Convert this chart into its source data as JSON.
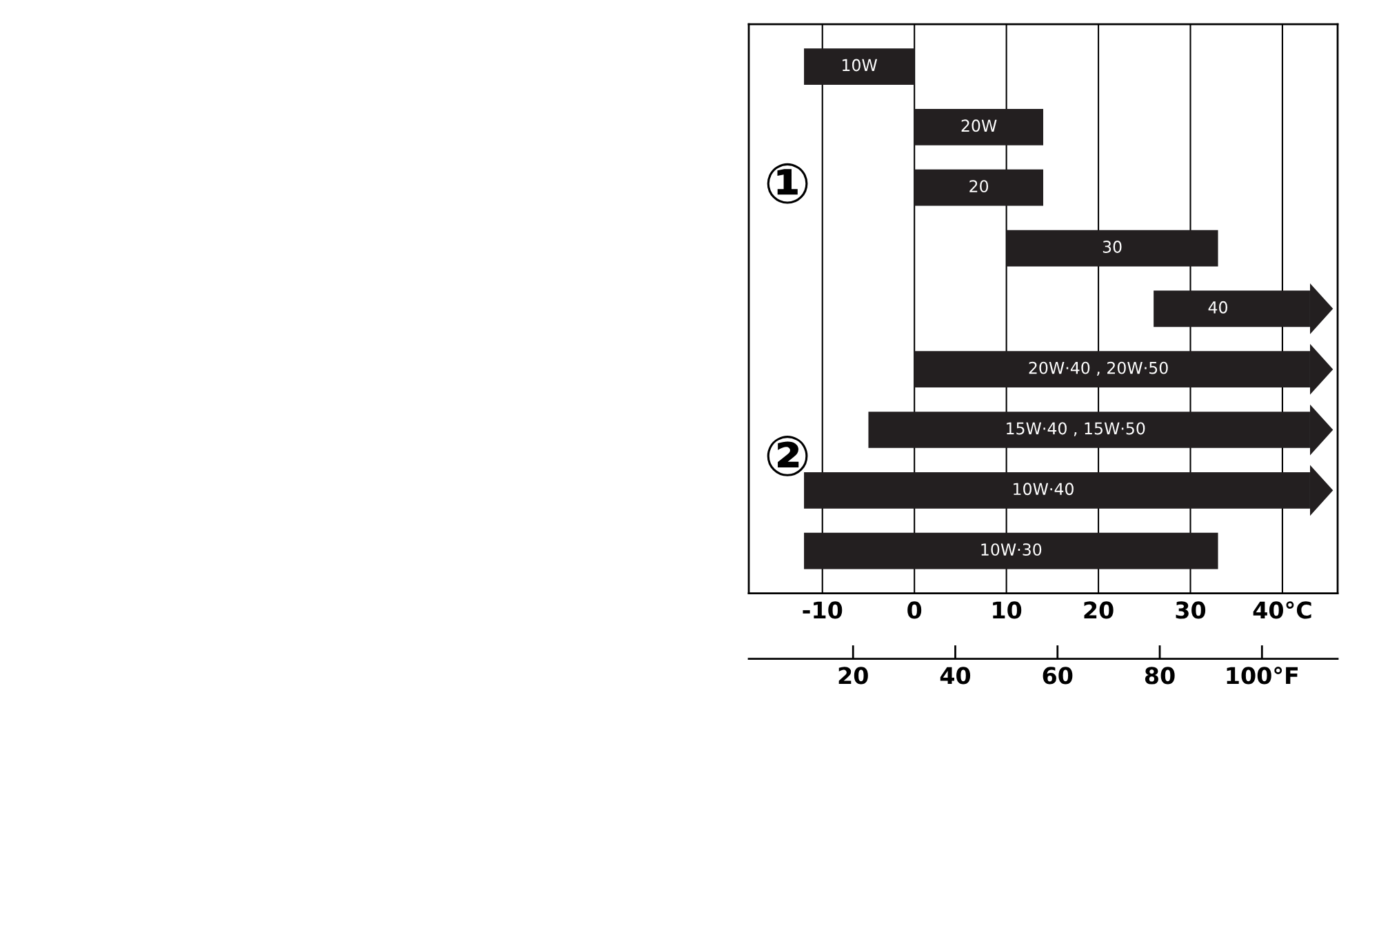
{
  "chart_data": {
    "type": "bar",
    "orientation": "horizontal",
    "categories": [
      "10W",
      "20W",
      "20",
      "30",
      "40",
      "20W·40 , 20W·50",
      "15W·40 , 15W·50",
      "10W·40",
      "10W·30"
    ],
    "base": [
      -12,
      0,
      0,
      10,
      26,
      0,
      -5,
      -12,
      -12
    ],
    "values": [
      12,
      14,
      14,
      23,
      17,
      43,
      48,
      55,
      45
    ],
    "color": "#231f20",
    "xlim": [
      -18,
      46
    ],
    "xticks": [
      -10,
      0,
      10,
      20,
      30,
      {
        "value": 40,
        "label": "40°C"
      }
    ],
    "x2lim": [
      -0.4,
      114.8
    ],
    "x2ticks": [
      20,
      40,
      60,
      80,
      {
        "value": 100,
        "label": "100°F"
      }
    ],
    "grid": "x",
    "tick_labels": "x",
    "annotations": [
      "①",
      "②"
    ]
  }
}
